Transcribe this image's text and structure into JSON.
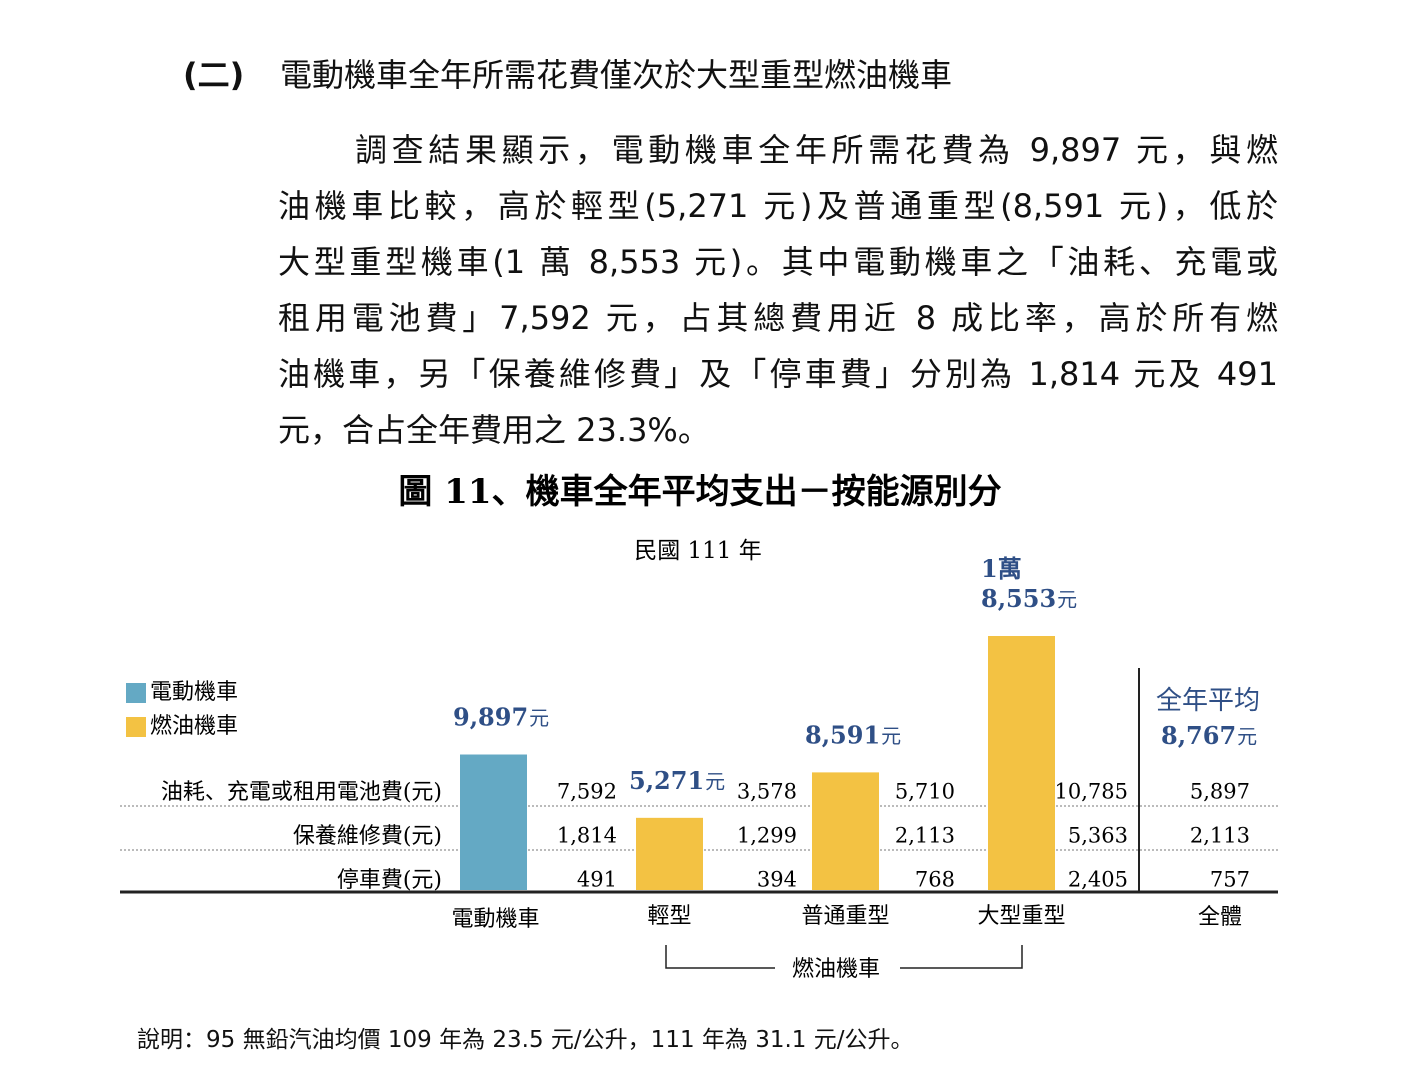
{
  "heading": {
    "number": "(二)",
    "title": "電動機車全年所需花費僅次於大型重型燃油機車"
  },
  "paragraph": [
    "調查結果顯示，電動機車全年所需花費為 9,897 元，與燃",
    "油機車比較，高於輕型(5,271 元)及普通重型(8,591 元)，低於",
    "大型重型機車(1 萬 8,553 元)。其中電動機車之「油耗、充電或",
    "租用電池費」7,592 元，占其總費用近 8 成比率，高於所有燃",
    "油機車，另「保養維修費」及「停車費」分別為 1,814 元及 491",
    "元，合占全年費用之 23.3%。"
  ],
  "chart_data": {
    "type": "bar",
    "title": "圖 11、機車全年平均支出－按能源別分",
    "subtitle": "民國 111 年",
    "categories": [
      "電動機車",
      "輕型",
      "普通重型",
      "大型重型"
    ],
    "values": [
      9897,
      5271,
      8591,
      18553
    ],
    "value_labels": [
      "9,897",
      "5,271",
      "8,591",
      "1萬\n8,553"
    ],
    "value_unit": "元",
    "colors": [
      "#64a9c4",
      "#f3c243",
      "#f3c243",
      "#f3c243"
    ],
    "legend": [
      {
        "name": "電動機車",
        "color": "#64a9c4"
      },
      {
        "name": "燃油機車",
        "color": "#f3c243"
      }
    ],
    "group_label": "燃油機車",
    "overall": {
      "category": "全體",
      "label": "全年平均",
      "value": "8,767"
    },
    "table": {
      "rows": [
        "油耗、充電或租用電池費(元)",
        "保養維修費(元)",
        "停車費(元)"
      ],
      "columns": [
        [
          "7,592",
          "1,814",
          "491"
        ],
        [
          "3,578",
          "1,299",
          "394"
        ],
        [
          "5,710",
          "2,113",
          "768"
        ],
        [
          "10,785",
          "5,363",
          "2,405"
        ],
        [
          "5,897",
          "2,113",
          "757"
        ]
      ]
    }
  },
  "note": "說明：95 無鉛汽油均價 109 年為 23.5 元/公升，111 年為 31.1 元/公升。"
}
